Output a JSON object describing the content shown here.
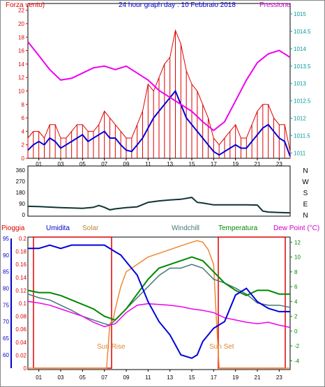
{
  "chart_data": [
    {
      "type": "line",
      "title": "24 hour graph day : 10 Febbraio 2018",
      "left_label": "Forza vento)",
      "right_label": "Pressione",
      "x_ticks": [
        "01",
        "03",
        "05",
        "07",
        "09",
        "11",
        "13",
        "15",
        "17",
        "19",
        "21",
        "23"
      ],
      "xlim": [
        0,
        24
      ],
      "left_axis": {
        "ticks": [
          "0",
          "2",
          "4",
          "6",
          "8",
          "10",
          "12",
          "14",
          "16",
          "18",
          "20",
          "22"
        ],
        "ylim": [
          0,
          23
        ]
      },
      "right_axis": {
        "ticks": [
          "1011",
          "1011.5",
          "1012",
          "1012.5",
          "1013",
          "1013.5",
          "1014",
          "1014.5",
          "1015"
        ],
        "ylim": [
          1010.85,
          1015.3
        ]
      },
      "series": [
        {
          "color": "#dd0000",
          "axis": "left",
          "style": "gust",
          "x": [
            0,
            0.5,
            1,
            1.5,
            2,
            2.5,
            3,
            3.5,
            4,
            4.5,
            5,
            5.5,
            6,
            6.5,
            7,
            7.5,
            8,
            8.5,
            9,
            9.5,
            10,
            10.5,
            11,
            11.5,
            12,
            12.5,
            13,
            13.5,
            14,
            14.5,
            15,
            15.5,
            16,
            16.5,
            17,
            17.5,
            18,
            18.5,
            19,
            19.5,
            20,
            20.5,
            21,
            21.5,
            22,
            22.5,
            23,
            23.5,
            24
          ],
          "y": [
            3,
            4,
            4,
            3,
            5,
            5,
            3,
            3,
            4,
            5,
            5,
            4,
            4,
            5,
            7,
            6,
            5,
            4,
            3,
            3,
            5,
            7,
            11,
            10,
            12,
            14,
            15,
            19,
            17,
            13,
            11,
            10,
            8,
            6,
            3,
            2,
            3,
            4,
            5,
            3,
            3,
            5,
            7,
            8,
            8,
            6,
            5,
            5,
            1
          ]
        },
        {
          "color": "#0000dd",
          "axis": "left",
          "x": [
            0,
            0.5,
            1,
            1.5,
            2,
            2.5,
            3,
            3.5,
            4,
            4.5,
            5,
            5.5,
            6,
            6.5,
            7,
            7.5,
            8,
            8.5,
            9,
            9.5,
            10,
            10.5,
            11,
            11.5,
            12,
            12.5,
            13,
            13.5,
            14,
            14.5,
            15,
            15.5,
            16,
            16.5,
            17,
            17.5,
            18,
            18.5,
            19,
            19.5,
            20,
            20.5,
            21,
            21.5,
            22,
            22.5,
            23,
            23.5,
            24
          ],
          "y": [
            1.2,
            2,
            2.5,
            2,
            3,
            2.5,
            1.5,
            2,
            2.5,
            3,
            3.5,
            2.5,
            3,
            3.5,
            4,
            3,
            3,
            2,
            1.2,
            1,
            2,
            3,
            4.5,
            6,
            7,
            8,
            9,
            10,
            8,
            6,
            5,
            4,
            3,
            2,
            1,
            0.5,
            1,
            1.5,
            2,
            1.5,
            1.5,
            2.5,
            3.5,
            4.5,
            5,
            4,
            3,
            2.5,
            0.3
          ]
        },
        {
          "color": "#ee00ee",
          "axis": "right",
          "x": [
            0,
            1,
            2,
            3,
            4,
            5,
            6,
            7,
            8,
            9,
            10,
            11,
            12,
            13,
            14,
            15,
            16,
            17,
            18,
            19,
            20,
            21,
            22,
            23,
            24
          ],
          "y": [
            1014.2,
            1013.8,
            1013.4,
            1013.1,
            1013.15,
            1013.3,
            1013.45,
            1013.5,
            1013.4,
            1013.5,
            1013.3,
            1013.1,
            1012.8,
            1012.6,
            1012.4,
            1012.2,
            1011.9,
            1011.65,
            1011.9,
            1012.5,
            1013.1,
            1013.6,
            1013.85,
            1013.95,
            1013.75
          ]
        }
      ]
    },
    {
      "type": "line",
      "left_ticks": [
        "360",
        "270",
        "180",
        "90",
        "0"
      ],
      "right_labels": [
        "N",
        "W",
        "S",
        "E",
        "N"
      ],
      "ylim": [
        0,
        360
      ],
      "xlim": [
        0,
        24
      ],
      "series": [
        {
          "color": "#113333",
          "x": [
            0,
            1,
            2,
            3,
            4,
            5,
            6,
            6.5,
            7,
            7.5,
            8,
            9,
            10,
            11,
            12,
            13,
            14,
            15,
            15.5,
            16,
            17,
            18,
            19,
            20,
            21,
            21.5,
            22,
            23,
            24
          ],
          "y": [
            68,
            66,
            62,
            58,
            55,
            52,
            60,
            75,
            60,
            40,
            48,
            58,
            64,
            100,
            112,
            120,
            125,
            140,
            100,
            95,
            80,
            80,
            80,
            80,
            78,
            30,
            22,
            18,
            16
          ]
        }
      ]
    },
    {
      "type": "line",
      "left_header": "Pioggia",
      "labels": [
        "Umidita",
        "Solar",
        "Windchill",
        "Temperatura",
        "Dew Point (°C)"
      ],
      "annotations": [
        "Sun Rise",
        "Sun Set"
      ],
      "x_ticks": [
        "01",
        "03",
        "05",
        "07",
        "09",
        "11",
        "13",
        "15",
        "17",
        "19",
        "21",
        "23"
      ],
      "rain_ticks": [
        "0",
        "0.02",
        "0.04",
        "0.06",
        "0.08",
        "0.1",
        "0.12",
        "0.14",
        "0.16",
        "0.18",
        "0.2"
      ],
      "humidity_ticks": [
        "60",
        "65",
        "70",
        "75",
        "80",
        "85",
        "90",
        "95"
      ],
      "temperature_ticks": [
        "-4",
        "-2",
        "0",
        "2",
        "4",
        "6",
        "8",
        "10",
        "12"
      ],
      "rain_ylim": [
        0,
        0.2
      ],
      "humidity_ylim": [
        56,
        95
      ],
      "temperature_ylim": [
        -5,
        12.5
      ],
      "xlim": [
        0,
        24
      ],
      "series": [
        {
          "name": "Umidita",
          "color": "#0000dd",
          "axis": "humidity",
          "x": [
            0,
            1,
            2,
            3,
            4,
            5,
            6,
            7,
            8,
            8.5,
            9,
            10,
            11,
            12,
            13,
            14,
            15,
            15.5,
            16,
            17,
            18,
            19,
            20,
            21,
            22,
            23,
            24
          ],
          "y": [
            92,
            92,
            93,
            92,
            93,
            93,
            93,
            93,
            91,
            90,
            88,
            84,
            76,
            70,
            66,
            60,
            59,
            60,
            64,
            68,
            70,
            78,
            80,
            76,
            74,
            73,
            73
          ]
        },
        {
          "name": "Solar",
          "color": "#ee8833",
          "axis": "temperature",
          "x": [
            0,
            7,
            7.2,
            7.5,
            7.8,
            8,
            8.5,
            9,
            10,
            11,
            12,
            13,
            14,
            15,
            15.5,
            16,
            16.5,
            17,
            17.2,
            17.5,
            24
          ],
          "y": [
            -5,
            -5,
            -5,
            1,
            1.5,
            3,
            6,
            8,
            9,
            10,
            10.5,
            11,
            11.5,
            12,
            12.2,
            12,
            11,
            9,
            3,
            -5,
            -5
          ]
        },
        {
          "name": "Windchill",
          "color": "#447777",
          "axis": "temperature",
          "x": [
            0,
            1,
            2,
            3,
            4,
            5,
            6,
            7,
            7.5,
            8,
            9,
            10,
            11,
            12,
            13,
            14,
            15,
            16,
            17,
            18,
            19,
            20,
            21,
            22,
            23,
            24
          ],
          "y": [
            5,
            4.5,
            4.2,
            3.5,
            2.8,
            2,
            1.5,
            1,
            0.8,
            1.5,
            3,
            4.5,
            6,
            7.5,
            8.5,
            8.5,
            9,
            8.5,
            7,
            6.5,
            5.8,
            5,
            3.8,
            3.5,
            3.5,
            3.2
          ]
        },
        {
          "name": "Temperatura",
          "color": "#008800",
          "axis": "temperature",
          "x": [
            0,
            1,
            2,
            3,
            4,
            5,
            6,
            7,
            8,
            9,
            10,
            11,
            12,
            13,
            14,
            15,
            16,
            17,
            18,
            19,
            20,
            21,
            22,
            23,
            24
          ],
          "y": [
            5.5,
            5.2,
            5.2,
            4.8,
            4.2,
            3.6,
            3,
            2,
            1.5,
            3,
            5,
            7,
            8.5,
            9,
            9.5,
            10,
            9.5,
            8,
            6.5,
            5.5,
            4.8,
            5.5,
            5.5,
            5,
            5
          ]
        },
        {
          "name": "Dew Point (°C)",
          "color": "#ee00ee",
          "axis": "temperature",
          "x": [
            0,
            1,
            2,
            3,
            4,
            5,
            6,
            7,
            8,
            9,
            10,
            11,
            12,
            13,
            14,
            15,
            16,
            17,
            18,
            19,
            20,
            21,
            22,
            23,
            24
          ],
          "y": [
            4,
            3.8,
            3.5,
            3,
            2.5,
            2,
            1.2,
            0.6,
            1,
            2.5,
            3.5,
            3.7,
            3.6,
            3.5,
            3.3,
            3,
            2.8,
            2.5,
            1.8,
            1.5,
            1.2,
            1,
            1.2,
            0.8,
            0.5
          ]
        }
      ]
    }
  ]
}
